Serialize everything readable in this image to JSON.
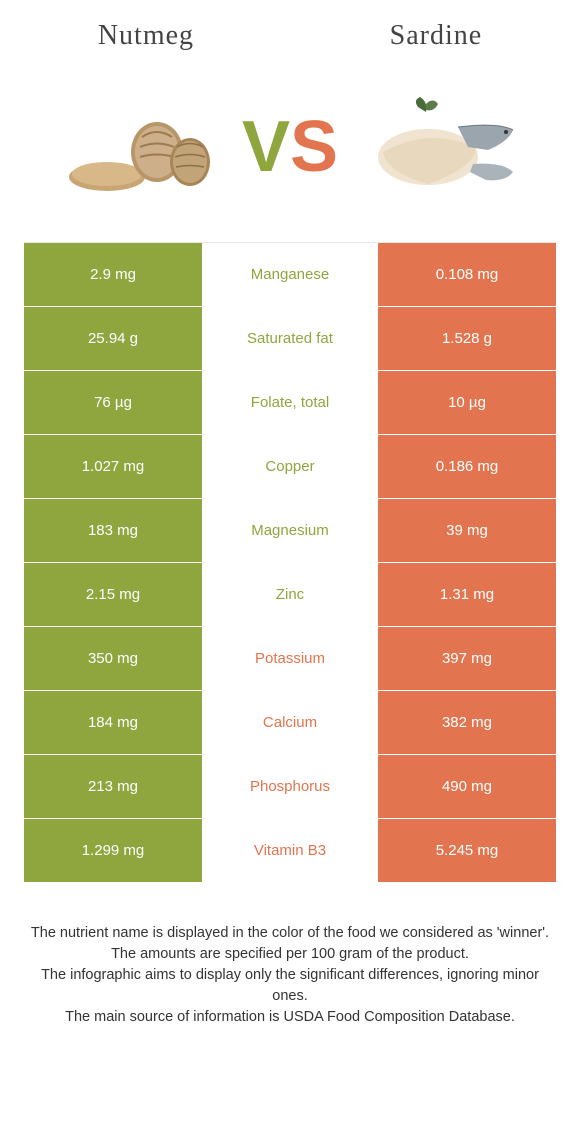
{
  "header": {
    "left_title": "Nutmeg",
    "right_title": "Sardine"
  },
  "vs": {
    "v": "V",
    "s": "S"
  },
  "colors": {
    "green": "#8fa63f",
    "orange": "#e2754f",
    "text": "#333333",
    "bg": "#ffffff"
  },
  "rows": [
    {
      "left": "2.9 mg",
      "label": "Manganese",
      "winner": "green",
      "right": "0.108 mg"
    },
    {
      "left": "25.94 g",
      "label": "Saturated fat",
      "winner": "green",
      "right": "1.528 g"
    },
    {
      "left": "76 µg",
      "label": "Folate, total",
      "winner": "green",
      "right": "10 µg"
    },
    {
      "left": "1.027 mg",
      "label": "Copper",
      "winner": "green",
      "right": "0.186 mg"
    },
    {
      "left": "183 mg",
      "label": "Magnesium",
      "winner": "green",
      "right": "39 mg"
    },
    {
      "left": "2.15 mg",
      "label": "Zinc",
      "winner": "green",
      "right": "1.31 mg"
    },
    {
      "left": "350 mg",
      "label": "Potassium",
      "winner": "orange",
      "right": "397 mg"
    },
    {
      "left": "184 mg",
      "label": "Calcium",
      "winner": "orange",
      "right": "382 mg"
    },
    {
      "left": "213 mg",
      "label": "Phosphorus",
      "winner": "orange",
      "right": "490 mg"
    },
    {
      "left": "1.299 mg",
      "label": "Vitamin B3",
      "winner": "orange",
      "right": "5.245 mg"
    }
  ],
  "footer": {
    "line1": "The nutrient name is displayed in the color of the food we considered as 'winner'.",
    "line2": "The amounts are specified per 100 gram of the product.",
    "line3": "The infographic aims to display only the significant differences, ignoring minor ones.",
    "line4": "The main source of information is USDA Food Composition Database."
  }
}
